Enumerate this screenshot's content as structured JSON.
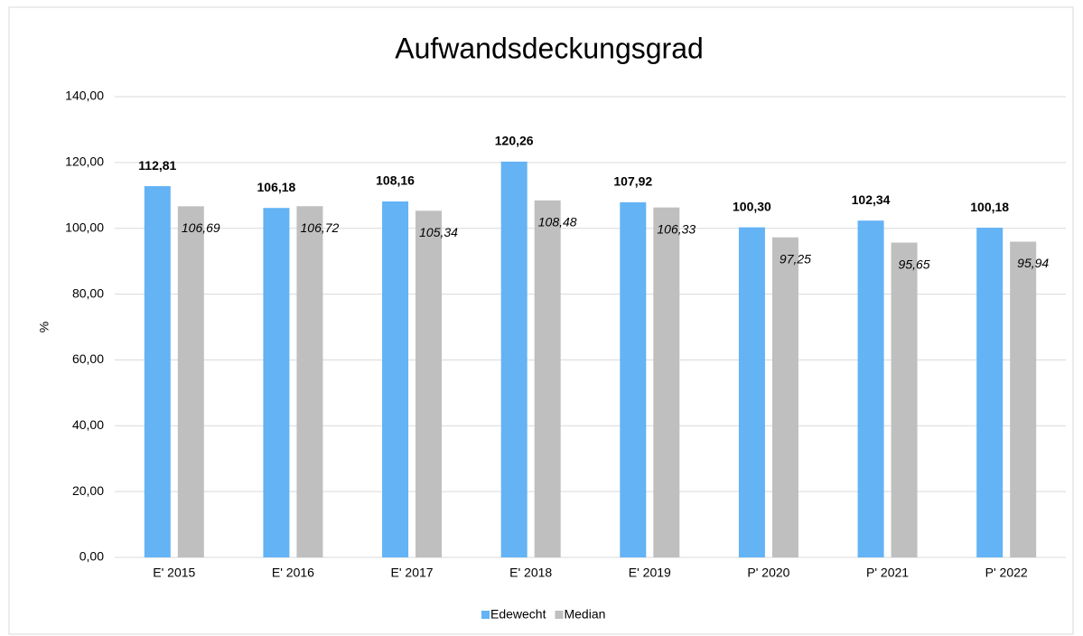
{
  "chart_data": {
    "type": "bar",
    "title": "Aufwandsdeckungsgrad",
    "y_label": "%",
    "categories": [
      "E' 2015",
      "E' 2016",
      "E' 2017",
      "E' 2018",
      "E' 2019",
      "P' 2020",
      "P' 2021",
      "P' 2022"
    ],
    "series": [
      {
        "name": "Edewecht",
        "color": "#63b3f5",
        "values": [
          112.81,
          106.18,
          108.16,
          120.26,
          107.92,
          100.3,
          102.34,
          100.18
        ],
        "value_labels": [
          "112,81",
          "106,18",
          "108,16",
          "120,26",
          "107,92",
          "100,30",
          "102,34",
          "100,18"
        ]
      },
      {
        "name": "Median",
        "color": "#bfbfbf",
        "values": [
          106.69,
          106.72,
          105.34,
          108.48,
          106.33,
          97.25,
          95.65,
          95.94
        ],
        "value_labels": [
          "106,69",
          "106,72",
          "105,34",
          "108,48",
          "106,33",
          "97,25",
          "95,65",
          "95,94"
        ]
      }
    ],
    "ylim": [
      0,
      140
    ],
    "yticks": [
      {
        "value": 0,
        "label": "0,00"
      },
      {
        "value": 20,
        "label": "20,00"
      },
      {
        "value": 40,
        "label": "40,00"
      },
      {
        "value": 60,
        "label": "60,00"
      },
      {
        "value": 80,
        "label": "80,00"
      },
      {
        "value": 100,
        "label": "100,00"
      },
      {
        "value": 120,
        "label": "120,00"
      },
      {
        "value": 140,
        "label": "140,00"
      }
    ],
    "grid": true,
    "legend": "bottom"
  }
}
